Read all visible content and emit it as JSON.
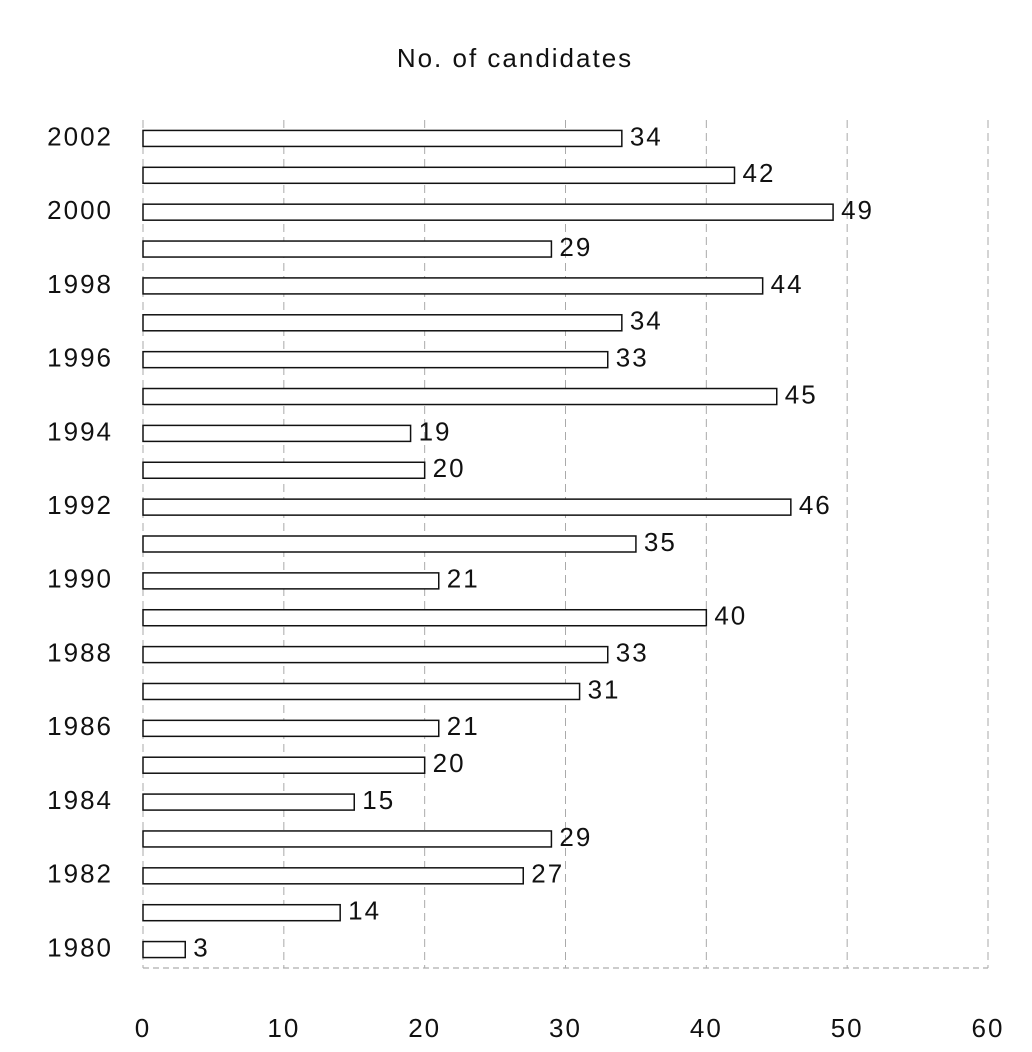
{
  "chart_data": {
    "type": "bar",
    "orientation": "horizontal",
    "title": "No. of candidates",
    "categories": [
      "2002",
      null,
      "2000",
      null,
      "1998",
      null,
      "1996",
      null,
      "1994",
      null,
      "1992",
      null,
      "1990",
      null,
      "1988",
      null,
      "1986",
      null,
      "1984",
      null,
      "1982",
      null,
      "1980"
    ],
    "values": [
      34,
      42,
      49,
      29,
      44,
      34,
      33,
      45,
      19,
      20,
      46,
      35,
      21,
      40,
      33,
      31,
      21,
      20,
      15,
      29,
      27,
      14,
      3
    ],
    "color": "#ffffff",
    "xlim": [
      0,
      60
    ],
    "xticks": [
      0,
      10,
      20,
      30,
      40,
      50,
      60
    ],
    "grid": true
  }
}
